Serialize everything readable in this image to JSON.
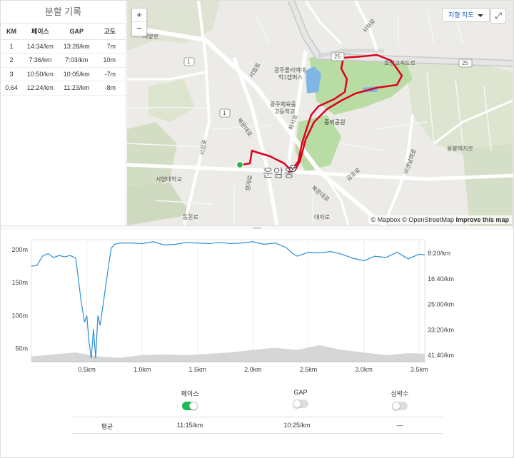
{
  "splits": {
    "title": "분할 기록",
    "headers": {
      "km": "KM",
      "pace": "페이스",
      "gap": "GAP",
      "elev": "고도"
    },
    "rows": [
      {
        "km": "1",
        "pace": "14:34/km",
        "gap": "13:28/km",
        "elev": "7m"
      },
      {
        "km": "2",
        "pace": "7:36/km",
        "gap": "7:03/km",
        "elev": "10m"
      },
      {
        "km": "3",
        "pace": "10:50/km",
        "gap": "10:05/km",
        "elev": "-7m"
      },
      {
        "km": "0.64",
        "pace": "12:24/km",
        "gap": "11:23/km",
        "elev": "-8m"
      }
    ]
  },
  "map": {
    "zoom_in": "+",
    "zoom_out": "−",
    "map_type": "지형 지도",
    "fullscreen": "⤢",
    "attribution_mapbox": "© Mapbox",
    "attribution_osm": "© OpenStreetMap",
    "attribution_improve": "Improve this map",
    "labels": {
      "seobang": "서방로",
      "seoamro": "서암로",
      "kwangju_poly": "광주폴리텍대",
      "kwangju_poly2": "학1캠퍼스",
      "kwangju_sports": "광주체육중",
      "kwangju_sports2": "고등학교",
      "bukmun": "북문대로",
      "hanam": "하서로",
      "jungoe": "중외공원",
      "honam": "호남고속도로",
      "yongbong": "용봉택지로",
      "biyeong": "비엔날레로",
      "seohyeon": "서영대학교",
      "woonam": "운암동",
      "hyangaero": "향개로",
      "bukmun2": "북문대로",
      "geumho": "금호로",
      "dongun": "동운로",
      "daeja": "대자로",
      "seogang": "서강로",
      "seoha": "서하로",
      "r1a": "1",
      "r1b": "1",
      "r25a": "25",
      "r25b": "25"
    }
  },
  "chart_data": {
    "type": "line",
    "x_ticks": [
      "0.5km",
      "1.0km",
      "1.5km",
      "2.0km",
      "2.5km",
      "3.0km",
      "3.5km"
    ],
    "x_tick_values": [
      0.5,
      1.0,
      1.5,
      2.0,
      2.5,
      3.0,
      3.5
    ],
    "xlim": [
      0,
      3.55
    ],
    "left_axis_ticks": [
      "200m",
      "150m",
      "100m",
      "50m"
    ],
    "left_axis_values": [
      200,
      150,
      100,
      50
    ],
    "left_ylim": [
      30,
      215
    ],
    "right_axis_ticks": [
      "8:20/km",
      "16:40/km",
      "25:00/km",
      "33:20/km",
      "41:40/km"
    ],
    "series": [
      {
        "name": "페이스",
        "x": [
          0,
          0.05,
          0.1,
          0.15,
          0.2,
          0.25,
          0.3,
          0.35,
          0.4,
          0.45,
          0.48,
          0.5,
          0.52,
          0.54,
          0.56,
          0.58,
          0.6,
          0.62,
          0.65,
          0.7,
          0.72,
          0.75,
          0.8,
          0.9,
          1.0,
          1.1,
          1.2,
          1.3,
          1.4,
          1.5,
          1.6,
          1.7,
          1.8,
          1.9,
          2.0,
          2.1,
          2.2,
          2.3,
          2.35,
          2.4,
          2.5,
          2.6,
          2.7,
          2.8,
          2.9,
          3.0,
          3.1,
          3.2,
          3.3,
          3.4,
          3.5,
          3.55
        ],
        "values": [
          175,
          176,
          190,
          194,
          188,
          191,
          189,
          191,
          187,
          120,
          90,
          100,
          60,
          35,
          80,
          35,
          100,
          85,
          120,
          180,
          202,
          208,
          210,
          210,
          209,
          212,
          207,
          208,
          211,
          210,
          209,
          211,
          209,
          210,
          212,
          208,
          210,
          203,
          195,
          190,
          196,
          195,
          197,
          193,
          187,
          183,
          190,
          188,
          196,
          186,
          193,
          192
        ]
      },
      {
        "name": "고도",
        "x": [
          0,
          0.2,
          0.4,
          0.6,
          0.8,
          1.0,
          1.2,
          1.4,
          1.6,
          1.8,
          2.0,
          2.2,
          2.4,
          2.6,
          2.8,
          3.0,
          3.2,
          3.4,
          3.55
        ],
        "values": [
          38,
          41,
          44,
          38,
          36,
          40,
          41,
          40,
          42,
          44,
          48,
          51,
          48,
          55,
          48,
          44,
          40,
          43,
          42
        ]
      }
    ]
  },
  "toggles": [
    {
      "label": "페이스",
      "on": true
    },
    {
      "label": "GAP",
      "on": false
    },
    {
      "label": "심박수",
      "on": false
    }
  ],
  "averages": {
    "label": "평균",
    "pace": "11:15/km",
    "gap": "10:25/km",
    "hr": "—"
  },
  "colors": {
    "pace_line": "#2a8ed8",
    "elevation_fill": "#d6d6d6",
    "route": "#e0001b",
    "toggle_on": "#1db954"
  }
}
